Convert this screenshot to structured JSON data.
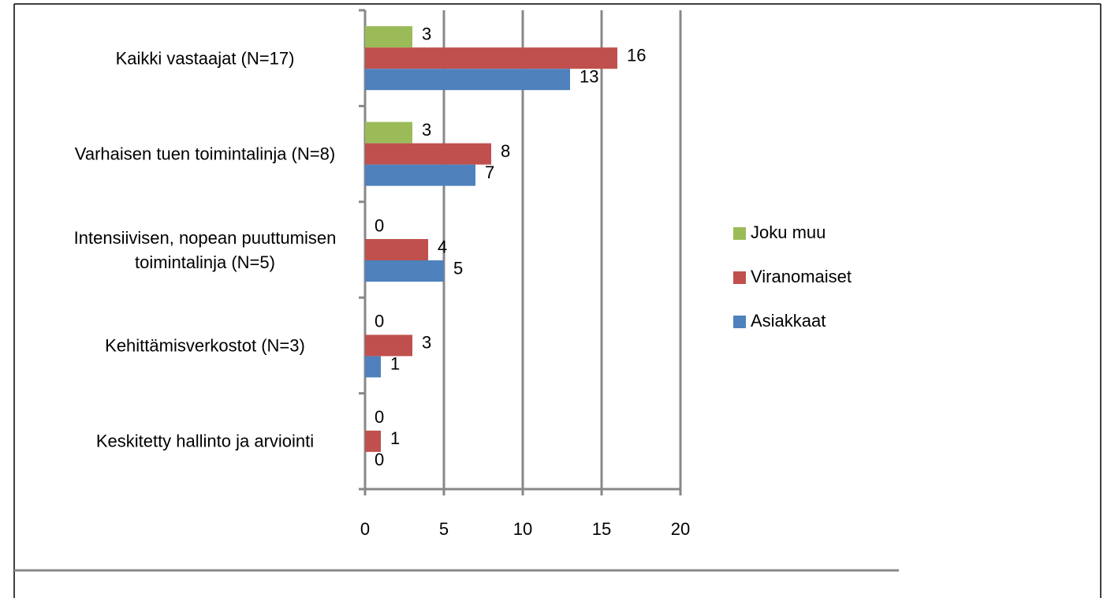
{
  "chart_data": {
    "type": "bar",
    "orientation": "horizontal",
    "categories": [
      "Kaikki vastaajat (N=17)",
      "Varhaisen tuen toimintalinja (N=8)",
      "Intensiivisen, nopean puuttumisen toimintalinja (N=5)",
      "Kehittämisverkostot (N=3)",
      "Keskitetty hallinto ja arviointi"
    ],
    "series": [
      {
        "name": "Joku muu",
        "color": "#9bbb59",
        "values": [
          3,
          3,
          0,
          0,
          0
        ]
      },
      {
        "name": "Viranomaiset",
        "color": "#c0504d",
        "values": [
          16,
          8,
          4,
          3,
          1
        ]
      },
      {
        "name": "Asiakkaat",
        "color": "#4f81bd",
        "values": [
          13,
          7,
          5,
          1,
          0
        ]
      }
    ],
    "xlim": [
      0,
      20
    ],
    "xticks": [
      0,
      5,
      10,
      15,
      20
    ],
    "grid": true,
    "legend": "right"
  }
}
